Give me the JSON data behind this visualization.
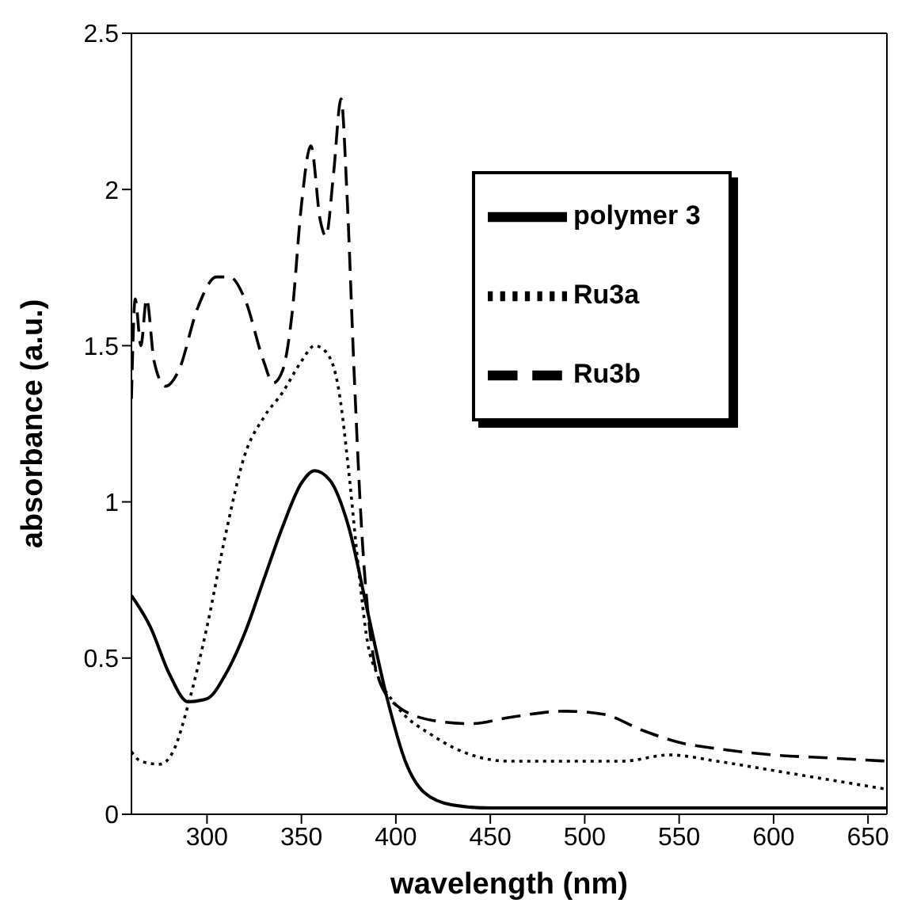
{
  "chart_data": {
    "type": "line",
    "xlabel": "wavelength  (nm)",
    "ylabel": "absorbance  (a.u.)",
    "xlim": [
      260,
      660
    ],
    "xticks": [
      300,
      350,
      400,
      450,
      500,
      550,
      600,
      650
    ],
    "ylim": [
      0,
      2.5
    ],
    "yticks": [
      0,
      0.5,
      1,
      1.5,
      2,
      2.5
    ],
    "grid": false,
    "legend": "top right",
    "marker": "none",
    "series": [
      {
        "name": "polymer  3",
        "color": "#000000",
        "line_style": "solid",
        "x": [
          260,
          270,
          280,
          290,
          300,
          310,
          320,
          330,
          340,
          350,
          357,
          365,
          375,
          385,
          395,
          405,
          415,
          430,
          450,
          500,
          600,
          660
        ],
        "values": [
          0.7,
          0.6,
          0.45,
          0.36,
          0.37,
          0.45,
          0.58,
          0.75,
          0.92,
          1.06,
          1.1,
          1.07,
          0.92,
          0.65,
          0.38,
          0.17,
          0.07,
          0.03,
          0.02,
          0.02,
          0.02,
          0.02
        ]
      },
      {
        "name": "Ru3a",
        "color": "#000000",
        "line_style": "dotted",
        "x": [
          260,
          265,
          275,
          282,
          290,
          300,
          310,
          320,
          330,
          340,
          350,
          357,
          363,
          370,
          375,
          380,
          385,
          390,
          400,
          420,
          440,
          460,
          490,
          520,
          545,
          570,
          600,
          630,
          660
        ],
        "values": [
          0.2,
          0.17,
          0.16,
          0.2,
          0.35,
          0.6,
          0.9,
          1.15,
          1.27,
          1.35,
          1.45,
          1.5,
          1.48,
          1.35,
          1.1,
          0.8,
          0.55,
          0.45,
          0.35,
          0.25,
          0.19,
          0.17,
          0.17,
          0.17,
          0.19,
          0.17,
          0.14,
          0.11,
          0.08
        ]
      },
      {
        "name": "Ru3b",
        "color": "#000000",
        "line_style": "dashed",
        "x": [
          260,
          262,
          265,
          268,
          272,
          278,
          285,
          295,
          305,
          312,
          320,
          330,
          335,
          340,
          345,
          350,
          355,
          360,
          363,
          367,
          371,
          374,
          378,
          382,
          386,
          390,
          400,
          420,
          440,
          460,
          490,
          510,
          530,
          550,
          570,
          600,
          630,
          660
        ],
        "values": [
          1.33,
          1.65,
          1.5,
          1.65,
          1.45,
          1.37,
          1.42,
          1.62,
          1.72,
          1.72,
          1.65,
          1.45,
          1.38,
          1.42,
          1.6,
          1.95,
          2.14,
          1.9,
          1.85,
          2.05,
          2.29,
          2.0,
          1.4,
          0.9,
          0.6,
          0.45,
          0.35,
          0.3,
          0.29,
          0.31,
          0.33,
          0.32,
          0.27,
          0.23,
          0.21,
          0.19,
          0.18,
          0.17
        ]
      }
    ]
  }
}
